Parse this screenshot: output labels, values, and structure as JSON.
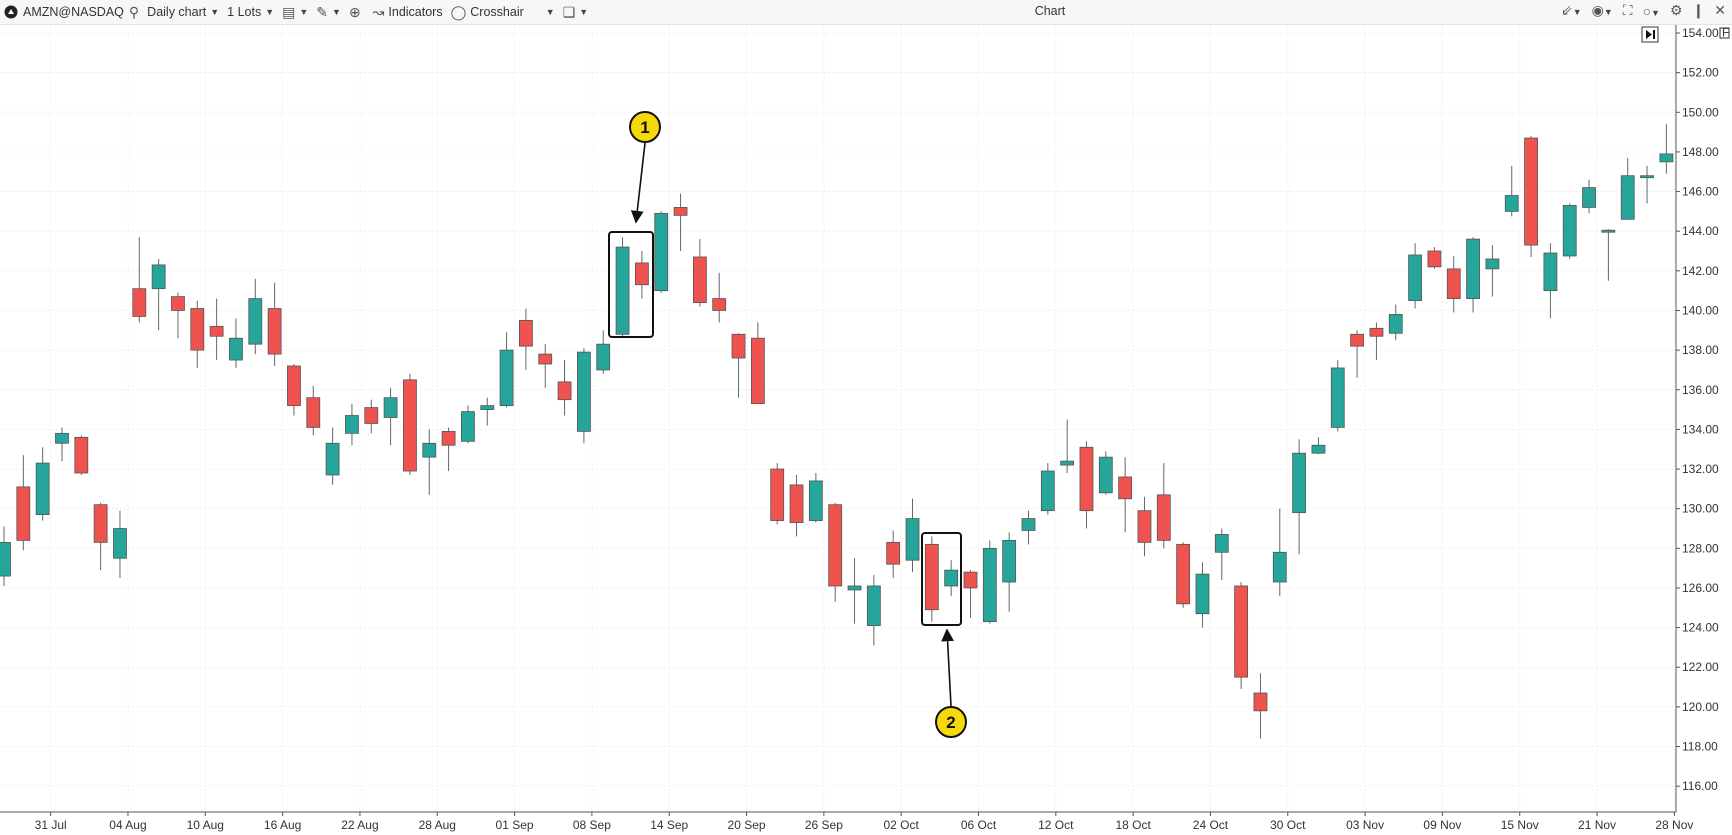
{
  "toolbar": {
    "symbol": "AMZN@NASDAQ",
    "timeframe": "Daily chart",
    "lots": "1 Lots",
    "indicators": "Indicators",
    "crosshair": "Crosshair",
    "title": "Chart",
    "icons": [
      "logo-icon",
      "search-icon",
      "caret-down-icon",
      "template-icon",
      "pencil-icon",
      "zoom-in-icon",
      "indicators-icon",
      "crosshair-icon",
      "window-icon",
      "collapse-icon",
      "camera-icon",
      "fullscreen-icon",
      "circle-icon",
      "gear-icon",
      "pin-icon",
      "close-icon"
    ]
  },
  "colors": {
    "up": "#26a69a",
    "down": "#ef5350",
    "annotation": "#f5d90a",
    "grid": "#efefef"
  },
  "chart_data": {
    "type": "candlestick",
    "ylim": [
      115,
      154.5
    ],
    "y_ticks": [
      "154.00",
      "152.00",
      "150.00",
      "148.00",
      "146.00",
      "144.00",
      "142.00",
      "140.00",
      "138.00",
      "136.00",
      "134.00",
      "132.00",
      "130.00",
      "128.00",
      "126.00",
      "124.00",
      "122.00",
      "120.00",
      "118.00",
      "116.00"
    ],
    "x_labels": [
      "31 Jul",
      "04 Aug",
      "10 Aug",
      "16 Aug",
      "22 Aug",
      "28 Aug",
      "01 Sep",
      "08 Sep",
      "14 Sep",
      "20 Sep",
      "26 Sep",
      "02 Oct",
      "06 Oct",
      "12 Oct",
      "18 Oct",
      "24 Oct",
      "30 Oct",
      "03 Nov",
      "09 Nov",
      "15 Nov",
      "21 Nov",
      "28 Nov"
    ],
    "price_scale_flag": "F",
    "grid": true,
    "ohlc": [
      [
        126.6,
        129.1,
        126.1,
        128.3
      ],
      [
        131.1,
        132.7,
        127.9,
        128.4
      ],
      [
        129.7,
        133.1,
        129.4,
        132.3
      ],
      [
        133.3,
        134.1,
        132.4,
        133.8
      ],
      [
        133.6,
        133.7,
        131.7,
        131.8
      ],
      [
        130.2,
        130.3,
        126.9,
        128.3
      ],
      [
        127.5,
        129.9,
        126.5,
        129.0
      ],
      [
        141.1,
        143.7,
        139.4,
        139.7
      ],
      [
        141.1,
        142.6,
        139.0,
        142.3
      ],
      [
        140.7,
        140.9,
        138.6,
        140.0
      ],
      [
        140.1,
        140.5,
        137.1,
        138.0
      ],
      [
        139.2,
        140.6,
        137.5,
        138.7
      ],
      [
        137.5,
        139.6,
        137.1,
        138.6
      ],
      [
        138.3,
        141.6,
        137.8,
        140.6
      ],
      [
        140.1,
        141.4,
        137.2,
        137.8
      ],
      [
        137.2,
        137.3,
        134.7,
        135.2
      ],
      [
        135.6,
        136.2,
        133.7,
        134.1
      ],
      [
        131.7,
        134.1,
        131.2,
        133.3
      ],
      [
        133.8,
        135.3,
        133.2,
        134.7
      ],
      [
        135.1,
        135.5,
        133.8,
        134.3
      ],
      [
        134.6,
        136.1,
        133.2,
        135.6
      ],
      [
        136.5,
        136.8,
        131.7,
        131.9
      ],
      [
        132.6,
        134.0,
        130.7,
        133.3
      ],
      [
        133.9,
        134.1,
        131.9,
        133.2
      ],
      [
        133.4,
        135.2,
        133.3,
        134.9
      ],
      [
        135.0,
        135.6,
        134.2,
        135.2
      ],
      [
        135.2,
        138.9,
        135.1,
        138.0
      ],
      [
        139.5,
        140.1,
        137.0,
        138.2
      ],
      [
        137.8,
        138.3,
        136.1,
        137.3
      ],
      [
        136.4,
        137.5,
        134.7,
        135.5
      ],
      [
        133.9,
        138.1,
        133.3,
        137.9
      ],
      [
        137.0,
        139.0,
        136.8,
        138.3
      ],
      [
        138.8,
        143.7,
        138.7,
        143.2
      ],
      [
        142.4,
        143.0,
        140.6,
        141.3
      ],
      [
        141.0,
        145.0,
        140.9,
        144.9
      ],
      [
        145.2,
        145.9,
        143.0,
        144.8
      ],
      [
        142.7,
        143.6,
        140.2,
        140.4
      ],
      [
        140.6,
        141.9,
        139.4,
        140.0
      ],
      [
        138.8,
        138.85,
        135.6,
        137.6
      ],
      [
        138.6,
        139.4,
        135.3,
        135.3
      ],
      [
        132.0,
        132.3,
        129.2,
        129.4
      ],
      [
        131.2,
        131.7,
        128.6,
        129.3
      ],
      [
        129.4,
        131.8,
        129.3,
        131.4
      ],
      [
        130.2,
        130.3,
        125.3,
        126.1
      ],
      [
        125.9,
        127.5,
        124.2,
        126.1
      ],
      [
        124.1,
        126.65,
        123.1,
        126.1
      ],
      [
        128.3,
        128.9,
        126.5,
        127.2
      ],
      [
        127.4,
        130.5,
        126.8,
        129.5
      ],
      [
        128.2,
        128.6,
        124.3,
        124.9
      ],
      [
        126.1,
        127.4,
        125.6,
        126.9
      ],
      [
        126.8,
        126.9,
        124.5,
        126.0
      ],
      [
        124.3,
        128.4,
        124.2,
        128.0
      ],
      [
        126.3,
        128.8,
        124.8,
        128.4
      ],
      [
        128.9,
        129.9,
        128.2,
        129.5
      ],
      [
        129.9,
        132.3,
        129.7,
        131.9
      ],
      [
        132.2,
        134.5,
        131.8,
        132.4
      ],
      [
        133.1,
        133.4,
        129.0,
        129.9
      ],
      [
        130.8,
        132.9,
        130.7,
        132.6
      ],
      [
        131.6,
        132.6,
        128.8,
        130.5
      ],
      [
        129.9,
        130.6,
        127.6,
        128.3
      ],
      [
        130.7,
        132.3,
        128.0,
        128.4
      ],
      [
        128.2,
        128.3,
        125.0,
        125.2
      ],
      [
        124.7,
        127.3,
        124.0,
        126.7
      ],
      [
        127.8,
        129.0,
        126.4,
        128.7
      ],
      [
        126.1,
        126.3,
        120.9,
        121.5
      ],
      [
        120.7,
        121.7,
        118.4,
        119.8
      ],
      [
        126.3,
        130.0,
        125.6,
        127.8
      ],
      [
        129.8,
        133.5,
        127.7,
        132.8
      ],
      [
        132.8,
        133.6,
        132.75,
        133.2
      ],
      [
        134.1,
        137.5,
        133.9,
        137.1
      ],
      [
        138.8,
        139.0,
        136.6,
        138.2
      ],
      [
        139.1,
        139.4,
        137.5,
        138.7
      ],
      [
        138.85,
        140.3,
        138.5,
        139.8
      ],
      [
        140.5,
        143.4,
        140.1,
        142.8
      ],
      [
        143.0,
        143.2,
        142.1,
        142.2
      ],
      [
        142.1,
        142.75,
        139.9,
        140.6
      ],
      [
        140.6,
        143.7,
        139.9,
        143.6
      ],
      [
        142.1,
        143.3,
        140.7,
        142.6
      ],
      [
        145.0,
        147.3,
        144.75,
        145.8
      ],
      [
        148.7,
        148.8,
        142.7,
        143.3
      ],
      [
        141.0,
        143.4,
        139.6,
        142.9
      ],
      [
        142.75,
        145.4,
        142.6,
        145.3
      ],
      [
        145.2,
        146.6,
        144.9,
        146.2
      ],
      [
        144.0,
        144.1,
        141.5,
        144.05
      ],
      [
        144.6,
        147.7,
        144.6,
        146.8
      ],
      [
        146.76,
        147.3,
        145.4,
        146.8
      ],
      [
        147.5,
        149.4,
        146.9,
        147.9
      ]
    ]
  },
  "annotations": [
    {
      "label": "1",
      "candles": [
        32,
        33
      ]
    },
    {
      "label": "2",
      "candles": [
        48,
        49
      ]
    }
  ]
}
